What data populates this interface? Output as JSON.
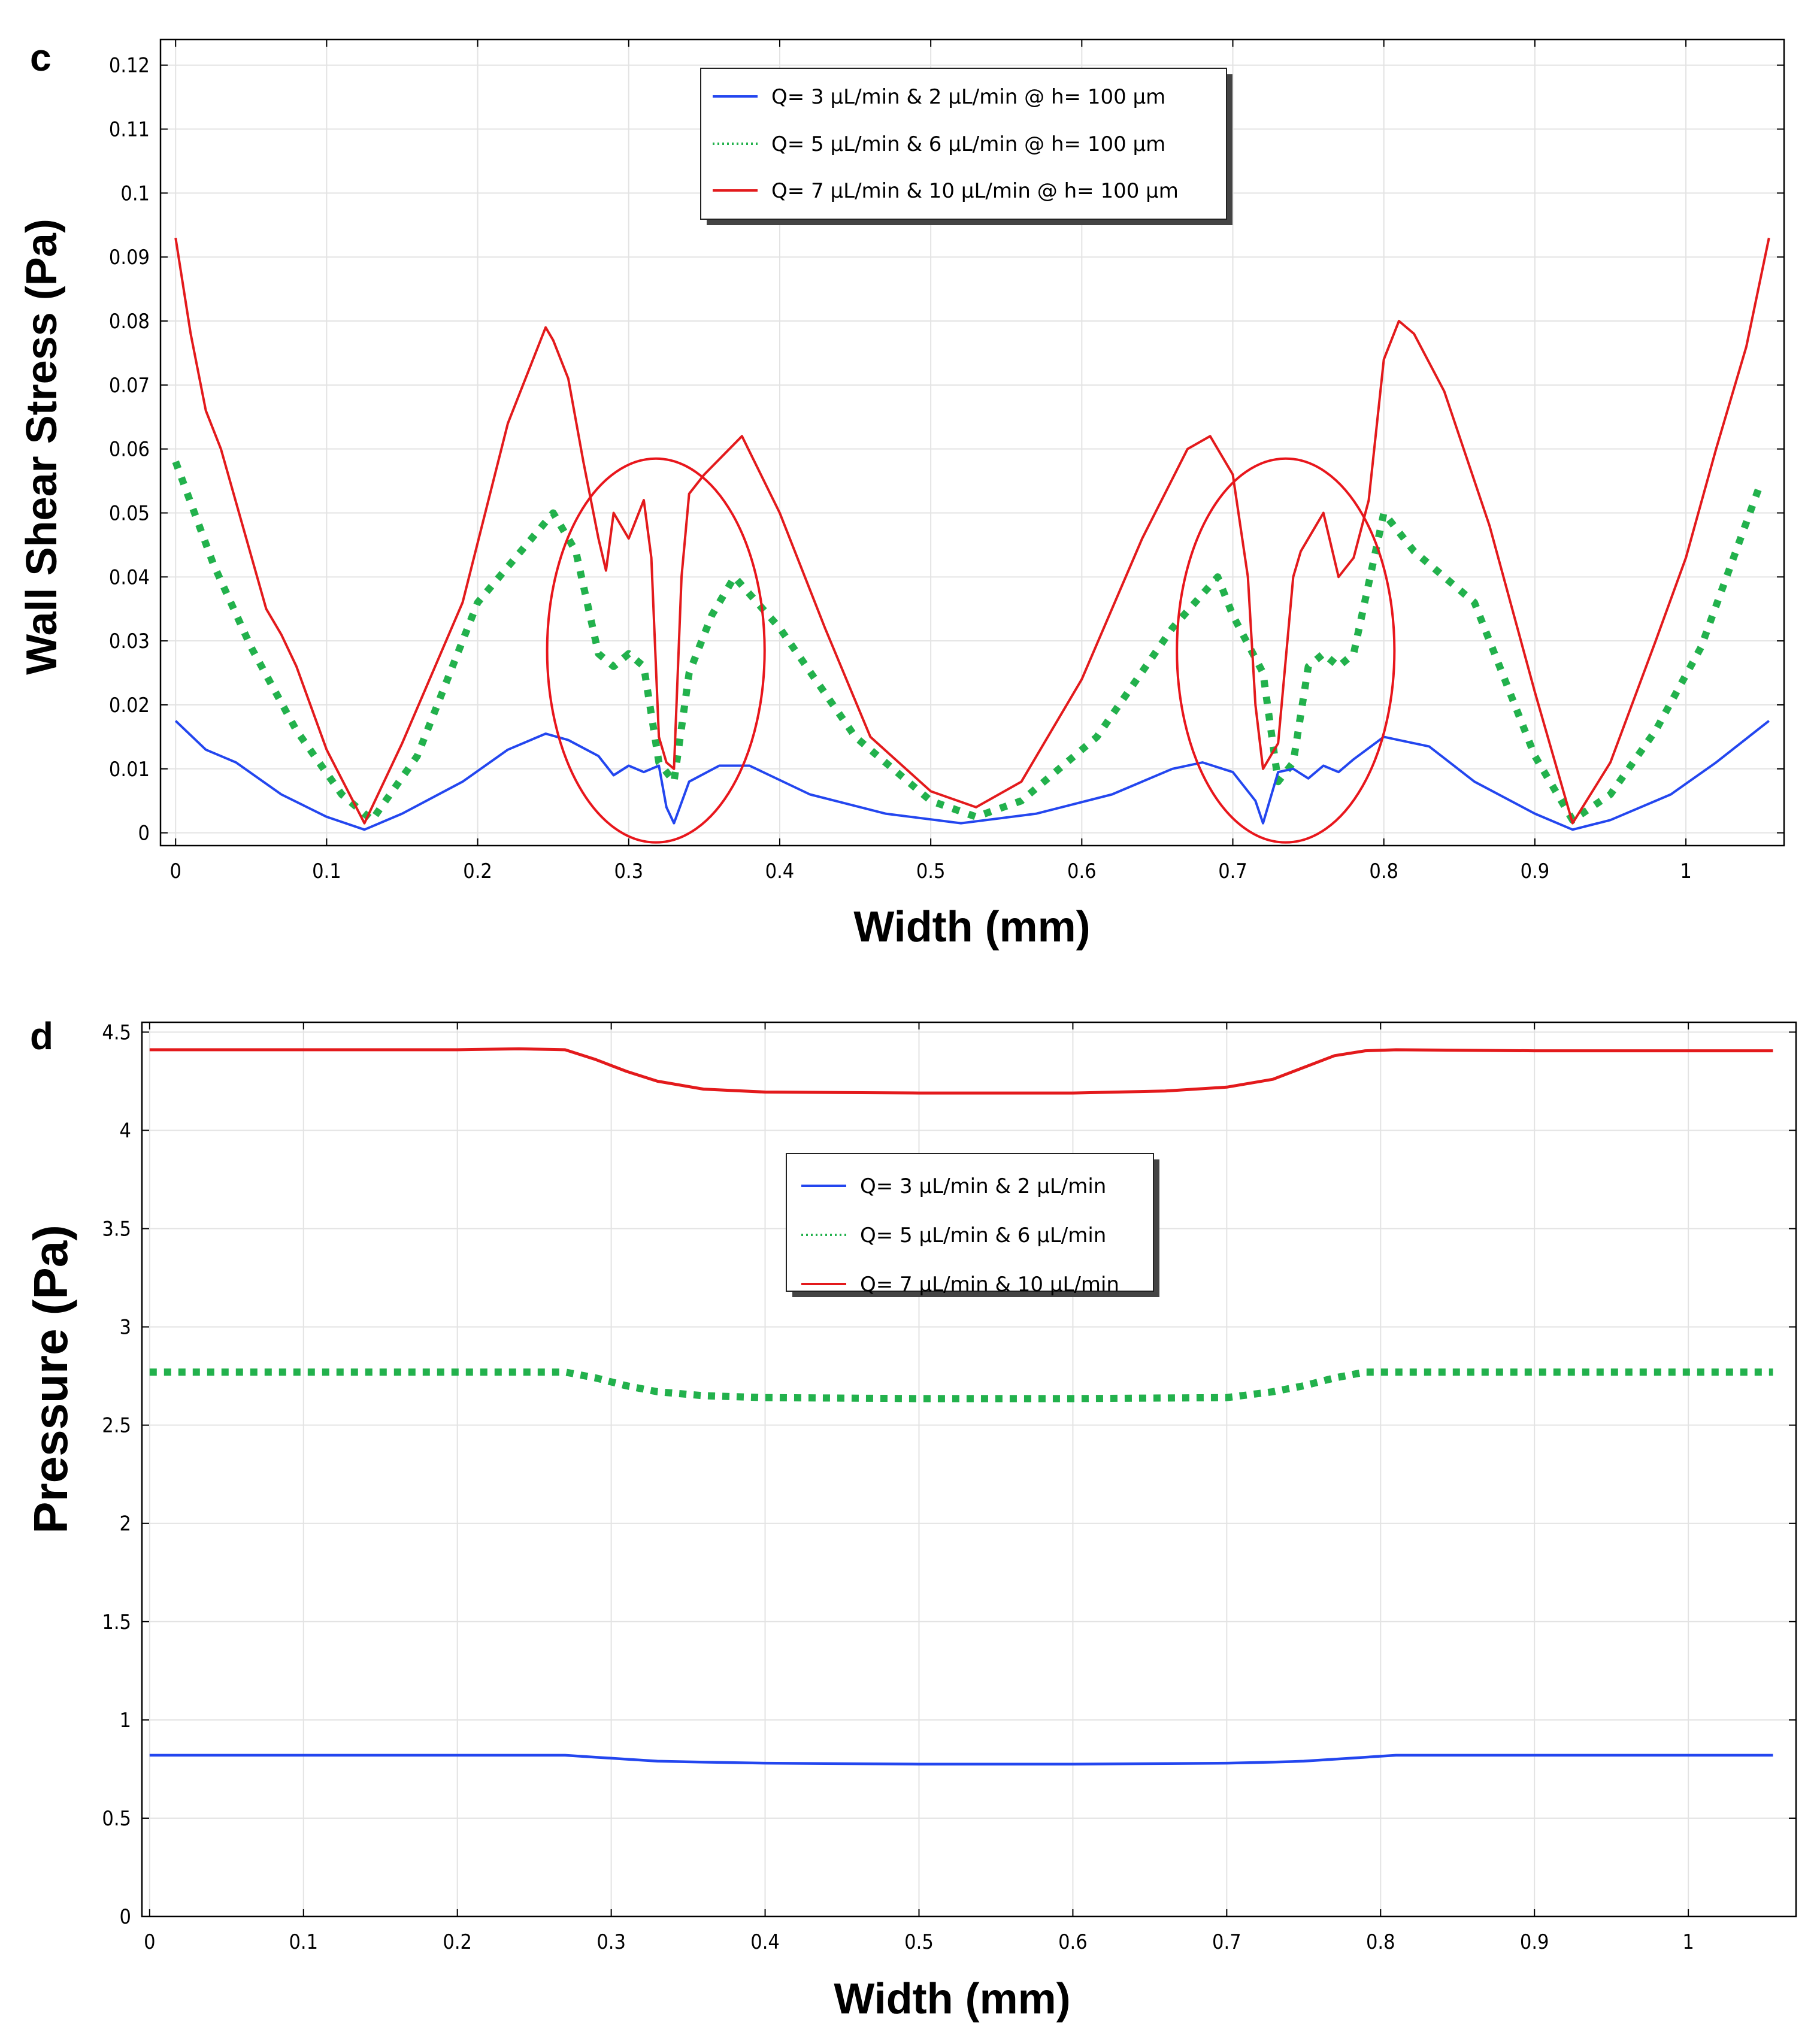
{
  "colors": {
    "blue": "#2346ef",
    "green": "#22b14c",
    "red": "#e31a1c",
    "grid": "#e3e3e3",
    "annotation": "#e8161c"
  },
  "chart_data": [
    {
      "panel": "c",
      "type": "line",
      "xlabel": "Width (mm)",
      "ylabel": "Wall Shear Stress (Pa)",
      "xlim": [
        -0.01,
        1.065
      ],
      "ylim": [
        -0.002,
        0.124
      ],
      "xticks": [
        0,
        0.1,
        0.2,
        0.3,
        0.4,
        0.5,
        0.6,
        0.7,
        0.8,
        0.9,
        1
      ],
      "xtick_labels": [
        "0",
        "0.1",
        "0.2",
        "0.3",
        "0.4",
        "0.5",
        "0.6",
        "0.7",
        "0.8",
        "0.9",
        "1"
      ],
      "yticks": [
        0,
        0.01,
        0.02,
        0.03,
        0.04,
        0.05,
        0.06,
        0.07,
        0.08,
        0.09,
        0.1,
        0.11,
        0.12
      ],
      "ytick_labels": [
        "0",
        "0.01",
        "0.02",
        "0.03",
        "0.04",
        "0.05",
        "0.06",
        "0.07",
        "0.08",
        "0.09",
        "0.1",
        "0.11",
        "0.12"
      ],
      "grid": true,
      "legend_position": "top-center",
      "series": [
        {
          "name": "Q= 3 µL/min & 2 µL/min @ h= 100 µm",
          "color": "#2346ef",
          "style": "solid",
          "x": [
            0,
            0.02,
            0.04,
            0.07,
            0.1,
            0.125,
            0.15,
            0.19,
            0.22,
            0.245,
            0.26,
            0.28,
            0.29,
            0.3,
            0.31,
            0.32,
            0.325,
            0.33,
            0.34,
            0.36,
            0.38,
            0.42,
            0.47,
            0.52,
            0.57,
            0.62,
            0.66,
            0.68,
            0.7,
            0.715,
            0.72,
            0.73,
            0.74,
            0.75,
            0.76,
            0.77,
            0.78,
            0.8,
            0.83,
            0.86,
            0.9,
            0.925,
            0.95,
            0.99,
            1.02,
            1.055
          ],
          "y": [
            0.0175,
            0.013,
            0.011,
            0.006,
            0.0025,
            0.0005,
            0.003,
            0.008,
            0.013,
            0.0155,
            0.0145,
            0.012,
            0.009,
            0.0105,
            0.0095,
            0.0105,
            0.004,
            0.0015,
            0.008,
            0.0105,
            0.0105,
            0.006,
            0.003,
            0.0015,
            0.003,
            0.006,
            0.01,
            0.011,
            0.0095,
            0.005,
            0.0015,
            0.0095,
            0.01,
            0.0085,
            0.0105,
            0.0095,
            0.0115,
            0.015,
            0.0135,
            0.008,
            0.003,
            0.0005,
            0.002,
            0.006,
            0.011,
            0.0175
          ]
        },
        {
          "name": "Q= 5 µL/min & 6 µL/min @ h= 100 µm",
          "color": "#22b14c",
          "style": "dotted",
          "x": [
            0,
            0.025,
            0.05,
            0.08,
            0.11,
            0.13,
            0.16,
            0.2,
            0.25,
            0.265,
            0.28,
            0.29,
            0.3,
            0.31,
            0.32,
            0.33,
            0.34,
            0.355,
            0.37,
            0.4,
            0.45,
            0.5,
            0.53,
            0.56,
            0.61,
            0.66,
            0.69,
            0.7,
            0.72,
            0.73,
            0.74,
            0.75,
            0.76,
            0.77,
            0.78,
            0.8,
            0.82,
            0.86,
            0.9,
            0.925,
            0.95,
            0.98,
            1.01,
            1.05
          ],
          "y": [
            0.058,
            0.042,
            0.029,
            0.016,
            0.006,
            0.002,
            0.012,
            0.036,
            0.05,
            0.044,
            0.028,
            0.026,
            0.028,
            0.026,
            0.011,
            0.008,
            0.025,
            0.034,
            0.04,
            0.032,
            0.015,
            0.005,
            0.0025,
            0.005,
            0.015,
            0.032,
            0.04,
            0.034,
            0.025,
            0.008,
            0.011,
            0.026,
            0.028,
            0.026,
            0.028,
            0.05,
            0.044,
            0.036,
            0.012,
            0.002,
            0.006,
            0.016,
            0.029,
            0.055
          ]
        },
        {
          "name": "Q= 7 µL/min & 10 µL/min @ h= 100 µm",
          "color": "#e31a1c",
          "style": "solid",
          "x": [
            0,
            0.01,
            0.02,
            0.03,
            0.06,
            0.07,
            0.08,
            0.1,
            0.125,
            0.15,
            0.19,
            0.22,
            0.245,
            0.25,
            0.26,
            0.27,
            0.28,
            0.285,
            0.29,
            0.3,
            0.31,
            0.315,
            0.32,
            0.325,
            0.33,
            0.335,
            0.34,
            0.35,
            0.375,
            0.4,
            0.43,
            0.46,
            0.5,
            0.53,
            0.56,
            0.6,
            0.64,
            0.67,
            0.685,
            0.7,
            0.71,
            0.715,
            0.72,
            0.725,
            0.73,
            0.74,
            0.745,
            0.76,
            0.77,
            0.78,
            0.79,
            0.8,
            0.81,
            0.82,
            0.84,
            0.87,
            0.9,
            0.925,
            0.95,
            0.98,
            1.0,
            1.02,
            1.04,
            1.055
          ],
          "y": [
            0.093,
            0.078,
            0.066,
            0.06,
            0.035,
            0.031,
            0.026,
            0.013,
            0.0015,
            0.014,
            0.036,
            0.064,
            0.079,
            0.077,
            0.071,
            0.058,
            0.046,
            0.041,
            0.05,
            0.046,
            0.052,
            0.043,
            0.015,
            0.011,
            0.01,
            0.04,
            0.053,
            0.056,
            0.062,
            0.05,
            0.032,
            0.015,
            0.0065,
            0.004,
            0.008,
            0.024,
            0.046,
            0.06,
            0.062,
            0.056,
            0.04,
            0.02,
            0.01,
            0.012,
            0.014,
            0.04,
            0.044,
            0.05,
            0.04,
            0.043,
            0.052,
            0.074,
            0.08,
            0.078,
            0.069,
            0.048,
            0.022,
            0.0015,
            0.011,
            0.03,
            0.043,
            0.06,
            0.076,
            0.093
          ]
        }
      ],
      "annotations": [
        {
          "type": "ellipse",
          "cx": 0.318,
          "cy": 0.0285,
          "rx": 0.072,
          "ry": 0.03
        },
        {
          "type": "ellipse",
          "cx": 0.735,
          "cy": 0.0285,
          "rx": 0.072,
          "ry": 0.03
        }
      ]
    },
    {
      "panel": "d",
      "type": "line",
      "xlabel": "Width (mm)",
      "ylabel": "Pressure (Pa)",
      "xlim": [
        -0.005,
        1.07
      ],
      "ylim": [
        0,
        4.55
      ],
      "xticks": [
        0,
        0.1,
        0.2,
        0.3,
        0.4,
        0.5,
        0.6,
        0.7,
        0.8,
        0.9,
        1
      ],
      "xtick_labels": [
        "0",
        "0.1",
        "0.2",
        "0.3",
        "0.4",
        "0.5",
        "0.6",
        "0.7",
        "0.8",
        "0.9",
        "1"
      ],
      "yticks": [
        0,
        0.5,
        1,
        1.5,
        2,
        2.5,
        3,
        3.5,
        4,
        4.5
      ],
      "ytick_labels": [
        "0",
        "0.5",
        "1",
        "1.5",
        "2",
        "2.5",
        "3",
        "3.5",
        "4",
        "4.5"
      ],
      "grid": true,
      "legend_position": "upper-center",
      "series": [
        {
          "name": "Q= 3 µL/min & 2 µL/min",
          "color": "#2346ef",
          "style": "solid",
          "x": [
            0,
            0.1,
            0.2,
            0.27,
            0.29,
            0.31,
            0.33,
            0.36,
            0.4,
            0.5,
            0.6,
            0.7,
            0.73,
            0.75,
            0.77,
            0.79,
            0.81,
            0.9,
            1.0,
            1.055
          ],
          "y": [
            0.82,
            0.82,
            0.82,
            0.82,
            0.81,
            0.8,
            0.79,
            0.785,
            0.78,
            0.775,
            0.775,
            0.78,
            0.785,
            0.79,
            0.8,
            0.81,
            0.82,
            0.82,
            0.82,
            0.82
          ]
        },
        {
          "name": "Q= 5 µL/min & 6 µL/min",
          "color": "#22b14c",
          "style": "dotted",
          "x": [
            0,
            0.1,
            0.2,
            0.27,
            0.29,
            0.31,
            0.33,
            0.36,
            0.4,
            0.5,
            0.6,
            0.7,
            0.73,
            0.75,
            0.77,
            0.79,
            0.81,
            0.9,
            1.0,
            1.055
          ],
          "y": [
            2.77,
            2.77,
            2.77,
            2.77,
            2.74,
            2.7,
            2.67,
            2.65,
            2.64,
            2.635,
            2.635,
            2.64,
            2.67,
            2.7,
            2.74,
            2.77,
            2.77,
            2.77,
            2.77,
            2.77
          ]
        },
        {
          "name": "Q= 7 µL/min & 10 µL/min",
          "color": "#e31a1c",
          "style": "solid",
          "x": [
            0,
            0.1,
            0.2,
            0.24,
            0.27,
            0.29,
            0.31,
            0.33,
            0.36,
            0.4,
            0.5,
            0.6,
            0.66,
            0.7,
            0.73,
            0.75,
            0.77,
            0.79,
            0.81,
            0.9,
            1.0,
            1.055
          ],
          "y": [
            4.41,
            4.41,
            4.41,
            4.415,
            4.41,
            4.36,
            4.3,
            4.25,
            4.21,
            4.195,
            4.19,
            4.19,
            4.2,
            4.22,
            4.26,
            4.32,
            4.38,
            4.405,
            4.41,
            4.405,
            4.405,
            4.405
          ]
        }
      ]
    }
  ]
}
